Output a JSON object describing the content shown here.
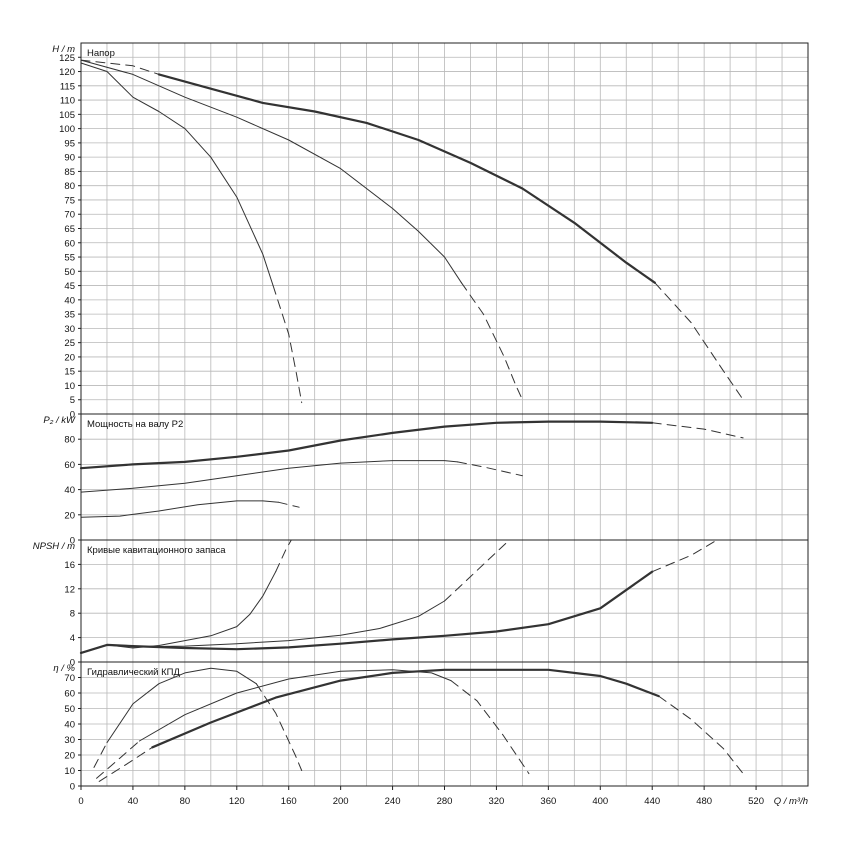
{
  "chart_data": {
    "type": "line",
    "x_axis": {
      "label": "Q / m³/h",
      "ticks": [
        0,
        40,
        80,
        120,
        160,
        200,
        240,
        280,
        320,
        360,
        400,
        440,
        480,
        520
      ],
      "range": [
        0,
        560
      ]
    },
    "panels": [
      {
        "id": "head",
        "title": "Напор",
        "ylabel": "H / m",
        "ylim": [
          0,
          130
        ],
        "yticks": [
          0,
          5,
          10,
          15,
          20,
          25,
          30,
          35,
          40,
          45,
          50,
          55,
          60,
          65,
          70,
          75,
          80,
          85,
          90,
          95,
          100,
          105,
          110,
          115,
          120,
          125
        ],
        "curves": [
          {
            "solid": [
              [
                0,
                123
              ],
              [
                20,
                120
              ],
              [
                40,
                111
              ],
              [
                60,
                106
              ],
              [
                80,
                100
              ],
              [
                100,
                90
              ],
              [
                120,
                76
              ],
              [
                140,
                56
              ],
              [
                148,
                45
              ]
            ],
            "dashed": [
              [
                148,
                45
              ],
              [
                160,
                28
              ],
              [
                166,
                14
              ],
              [
                170,
                4
              ]
            ]
          },
          {
            "solid": [
              [
                0,
                124
              ],
              [
                40,
                119
              ],
              [
                80,
                111
              ],
              [
                120,
                104
              ],
              [
                160,
                96
              ],
              [
                200,
                86
              ],
              [
                240,
                72
              ],
              [
                260,
                64
              ],
              [
                280,
                55
              ],
              [
                293,
                46
              ]
            ],
            "dashed": [
              [
                293,
                46
              ],
              [
                310,
                35
              ],
              [
                326,
                20
              ],
              [
                335,
                10
              ],
              [
                340,
                5
              ]
            ]
          },
          {
            "dashed": [
              [
                0,
                124
              ],
              [
                40,
                122
              ],
              [
                60,
                119
              ]
            ],
            "solid": [
              [
                60,
                119
              ],
              [
                100,
                114
              ],
              [
                140,
                109
              ],
              [
                180,
                106
              ],
              [
                220,
                102
              ],
              [
                260,
                96
              ],
              [
                300,
                88
              ],
              [
                340,
                79
              ],
              [
                380,
                67
              ],
              [
                420,
                53
              ],
              [
                442,
                46
              ]
            ],
            "dashed2": [
              [
                442,
                46
              ],
              [
                470,
                32
              ],
              [
                495,
                15
              ],
              [
                510,
                5
              ]
            ]
          }
        ]
      },
      {
        "id": "power",
        "title": "Мощность на валу P2",
        "ylabel": "P₂ / kW",
        "ylim": [
          0,
          100
        ],
        "yticks": [
          0,
          20,
          40,
          60,
          80
        ],
        "curves": [
          {
            "solid": [
              [
                0,
                18
              ],
              [
                30,
                19
              ],
              [
                60,
                23
              ],
              [
                90,
                28
              ],
              [
                120,
                31
              ],
              [
                140,
                31
              ],
              [
                152,
                30
              ]
            ],
            "dashed": [
              [
                152,
                30
              ],
              [
                168,
                26
              ]
            ]
          },
          {
            "solid": [
              [
                0,
                38
              ],
              [
                40,
                41
              ],
              [
                80,
                45
              ],
              [
                120,
                51
              ],
              [
                160,
                57
              ],
              [
                200,
                61
              ],
              [
                240,
                63
              ],
              [
                280,
                63
              ],
              [
                290,
                62
              ]
            ],
            "dashed": [
              [
                290,
                62
              ],
              [
                310,
                58
              ],
              [
                340,
                51
              ]
            ]
          },
          {
            "solid": [
              [
                0,
                57
              ],
              [
                40,
                60
              ],
              [
                80,
                62
              ],
              [
                120,
                66
              ],
              [
                160,
                71
              ],
              [
                200,
                79
              ],
              [
                240,
                85
              ],
              [
                280,
                90
              ],
              [
                320,
                93
              ],
              [
                360,
                94
              ],
              [
                400,
                94
              ],
              [
                440,
                93
              ]
            ],
            "dashed": [
              [
                440,
                93
              ],
              [
                480,
                88
              ],
              [
                510,
                81
              ]
            ]
          }
        ]
      },
      {
        "id": "npsh",
        "title": "Кривые кавитационного запаса",
        "ylabel": "NPSH / m",
        "ylim": [
          0,
          20
        ],
        "yticks": [
          0,
          4,
          8,
          12,
          16
        ],
        "curves": [
          {
            "solid": [
              [
                0,
                1.5
              ],
              [
                20,
                2.8
              ],
              [
                40,
                2.3
              ],
              [
                60,
                2.7
              ],
              [
                80,
                3.5
              ],
              [
                100,
                4.3
              ],
              [
                120,
                5.8
              ],
              [
                130,
                7.8
              ],
              [
                140,
                10.8
              ],
              [
                150,
                14.8
              ]
            ],
            "dashed": [
              [
                150,
                14.8
              ],
              [
                158,
                18.5
              ],
              [
                162,
                20
              ]
            ]
          },
          {
            "solid": [
              [
                0,
                1.5
              ],
              [
                20,
                2.8
              ],
              [
                40,
                2.5
              ],
              [
                80,
                2.6
              ],
              [
                120,
                3
              ],
              [
                160,
                3.5
              ],
              [
                200,
                4.4
              ],
              [
                230,
                5.5
              ],
              [
                260,
                7.5
              ],
              [
                280,
                10
              ]
            ],
            "dashed": [
              [
                280,
                10
              ],
              [
                300,
                14
              ],
              [
                320,
                18
              ],
              [
                330,
                20
              ]
            ]
          },
          {
            "solid": [
              [
                0,
                1.5
              ],
              [
                20,
                2.8
              ],
              [
                40,
                2.6
              ],
              [
                80,
                2.3
              ],
              [
                120,
                2.1
              ],
              [
                160,
                2.4
              ],
              [
                200,
                3
              ],
              [
                240,
                3.7
              ],
              [
                280,
                4.3
              ],
              [
                320,
                5
              ],
              [
                360,
                6.2
              ],
              [
                400,
                8.8
              ],
              [
                440,
                14.8
              ]
            ],
            "dashed": [
              [
                440,
                14.8
              ],
              [
                470,
                17.5
              ],
              [
                490,
                20
              ]
            ]
          }
        ]
      },
      {
        "id": "eff",
        "title": "Гидравлический КПД",
        "ylabel": "η / %",
        "ylim": [
          0,
          80
        ],
        "yticks": [
          0,
          10,
          20,
          30,
          40,
          50,
          60,
          70
        ],
        "curves": [
          {
            "dashed": [
              [
                10,
                12
              ],
              [
                20,
                28
              ]
            ],
            "solid": [
              [
                20,
                28
              ],
              [
                40,
                53
              ],
              [
                60,
                66
              ],
              [
                80,
                73
              ],
              [
                100,
                76
              ],
              [
                120,
                74
              ],
              [
                135,
                66
              ]
            ],
            "dashed2": [
              [
                135,
                66
              ],
              [
                150,
                47
              ],
              [
                165,
                20
              ],
              [
                170,
                10
              ]
            ]
          },
          {
            "dashed": [
              [
                12,
                5
              ],
              [
                30,
                18
              ],
              [
                45,
                29
              ]
            ],
            "solid": [
              [
                45,
                29
              ],
              [
                80,
                46
              ],
              [
                120,
                60
              ],
              [
                160,
                69
              ],
              [
                200,
                74
              ],
              [
                240,
                75
              ],
              [
                270,
                73
              ],
              [
                285,
                68
              ]
            ],
            "dashed2": [
              [
                285,
                68
              ],
              [
                305,
                55
              ],
              [
                325,
                33
              ],
              [
                345,
                8
              ]
            ]
          },
          {
            "dashed": [
              [
                14,
                3
              ],
              [
                35,
                14
              ],
              [
                55,
                25
              ]
            ],
            "solid": [
              [
                55,
                25
              ],
              [
                100,
                41
              ],
              [
                150,
                57
              ],
              [
                200,
                68
              ],
              [
                240,
                73
              ],
              [
                280,
                75
              ],
              [
                320,
                75
              ],
              [
                360,
                75
              ],
              [
                400,
                71
              ],
              [
                420,
                66
              ],
              [
                445,
                58
              ]
            ],
            "dashed2": [
              [
                445,
                58
              ],
              [
                470,
                43
              ],
              [
                495,
                24
              ],
              [
                510,
                8
              ]
            ]
          }
        ]
      }
    ]
  }
}
